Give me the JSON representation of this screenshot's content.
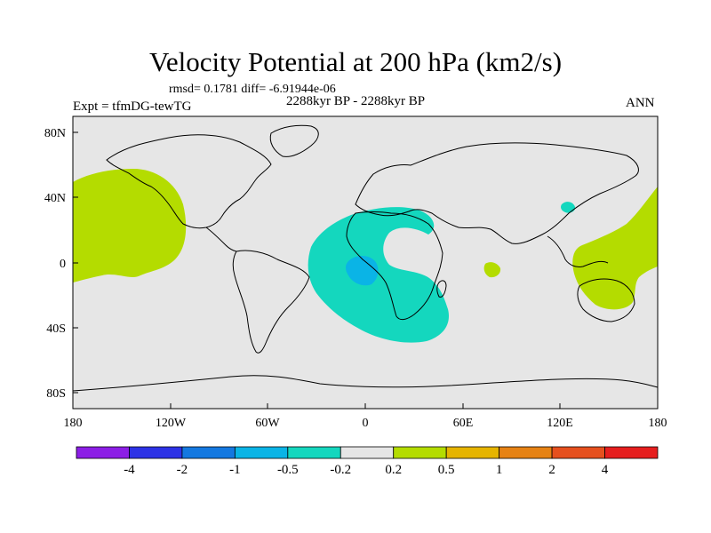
{
  "title": "Velocity Potential at 200 hPa (km2/s)",
  "stats": {
    "text": "rmsd= 0.1781 diff= -6.91944e-06"
  },
  "period": "2288kyr BP - 2288kyr BP",
  "experiment": "Expt = tfmDG-tewTG",
  "season": "ANN",
  "axes": {
    "x_ticks": [
      "180",
      "120W",
      "60W",
      "0",
      "60E",
      "120E",
      "180"
    ],
    "y_ticks": [
      "80N",
      "40N",
      "0",
      "40S",
      "80S"
    ]
  },
  "colorbar": {
    "labels": [
      "-4",
      "-2",
      "-1",
      "-0.5",
      "-0.2",
      "0.2",
      "0.5",
      "1",
      "2",
      "4"
    ],
    "colors": [
      "#8c1ee6",
      "#2d32e6",
      "#1478e0",
      "#0ab4e6",
      "#14d7be",
      "#e6e6e6",
      "#b4dc00",
      "#e6b400",
      "#e68214",
      "#e6501e",
      "#e61e1e"
    ]
  },
  "regions": [
    {
      "name": "north-pacific-positive",
      "level": "0.2 to 0.5"
    },
    {
      "name": "western-pacific-positive",
      "level": "0.2 to 0.5"
    },
    {
      "name": "indian-ocean-positive",
      "level": "0.2 to 0.5"
    },
    {
      "name": "atlantic-africa-negative",
      "level": "-0.5 to -0.2"
    },
    {
      "name": "central-africa-negative",
      "level": "-1 to -0.5"
    },
    {
      "name": "east-asia-negative",
      "level": "-0.5 to -0.2"
    }
  ]
}
